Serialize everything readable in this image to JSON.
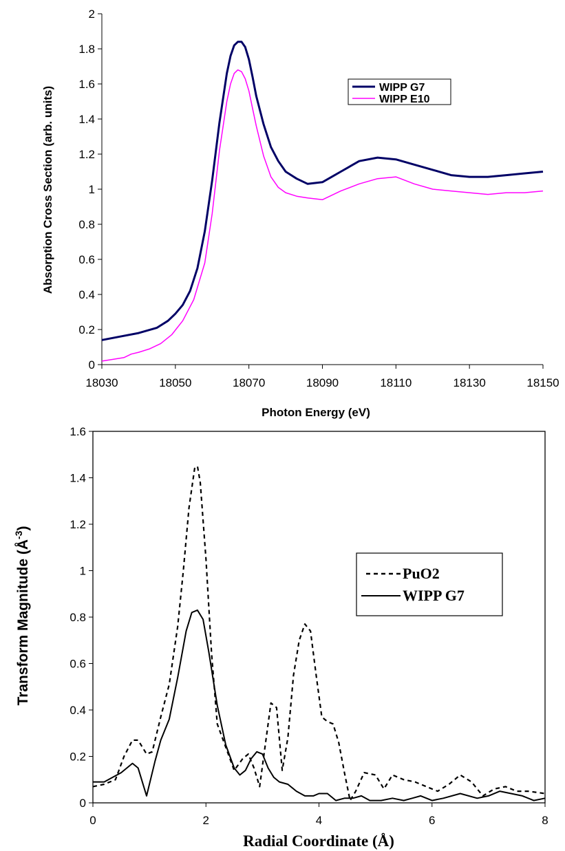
{
  "chart_data": [
    {
      "type": "line",
      "xlabel": "Photon Energy (eV)",
      "ylabel": "Absorption Cross Section (arb. units)",
      "xlim": [
        18030,
        18150
      ],
      "ylim": [
        0,
        2
      ],
      "xticks": [
        "18030",
        "18050",
        "18070",
        "18090",
        "18110",
        "18130",
        "18150"
      ],
      "yticks": [
        "0",
        "0.2",
        "0.4",
        "0.6",
        "0.8",
        "1",
        "1.2",
        "1.4",
        "1.6",
        "1.8",
        "2"
      ],
      "grid": false,
      "legend_position": "top-right",
      "series": [
        {
          "name": "WIPP G7",
          "color": "#000066",
          "style": "solid",
          "x": [
            18030,
            18035,
            18040,
            18045,
            18048,
            18050,
            18052,
            18054,
            18056,
            18058,
            18060,
            18062,
            18064,
            18065,
            18066,
            18067,
            18068,
            18069,
            18070,
            18071,
            18072,
            18074,
            18076,
            18078,
            18080,
            18083,
            18086,
            18090,
            18095,
            18100,
            18105,
            18110,
            18115,
            18120,
            18125,
            18130,
            18135,
            18140,
            18145,
            18150
          ],
          "y": [
            0.14,
            0.16,
            0.18,
            0.21,
            0.25,
            0.29,
            0.34,
            0.42,
            0.55,
            0.76,
            1.05,
            1.38,
            1.66,
            1.76,
            1.82,
            1.84,
            1.84,
            1.81,
            1.74,
            1.64,
            1.53,
            1.37,
            1.24,
            1.16,
            1.1,
            1.06,
            1.03,
            1.04,
            1.1,
            1.16,
            1.18,
            1.17,
            1.14,
            1.11,
            1.08,
            1.07,
            1.07,
            1.08,
            1.09,
            1.1
          ]
        },
        {
          "name": "WIPP E10",
          "color": "#ff00ff",
          "style": "solid",
          "x": [
            18030,
            18033,
            18036,
            18038,
            18040,
            18043,
            18046,
            18049,
            18052,
            18055,
            18058,
            18060,
            18062,
            18064,
            18065,
            18066,
            18067,
            18068,
            18069,
            18070,
            18071,
            18072,
            18074,
            18076,
            18078,
            18080,
            18083,
            18086,
            18090,
            18095,
            18100,
            18105,
            18110,
            18115,
            18120,
            18125,
            18130,
            18135,
            18140,
            18145,
            18150
          ],
          "y": [
            0.02,
            0.03,
            0.04,
            0.06,
            0.07,
            0.09,
            0.12,
            0.17,
            0.25,
            0.37,
            0.58,
            0.86,
            1.22,
            1.5,
            1.6,
            1.66,
            1.68,
            1.67,
            1.63,
            1.56,
            1.46,
            1.36,
            1.19,
            1.07,
            1.01,
            0.98,
            0.96,
            0.95,
            0.94,
            0.99,
            1.03,
            1.06,
            1.07,
            1.03,
            1.0,
            0.99,
            0.98,
            0.97,
            0.98,
            0.98,
            0.99
          ]
        }
      ]
    },
    {
      "type": "line",
      "xlabel": "Radial Coordinate (Å)",
      "ylabel_main": "Transform Magnitude (Å",
      "ylabel_sup": "-3",
      "ylabel_end": ")",
      "xlim": [
        0,
        8
      ],
      "ylim": [
        0,
        1.6
      ],
      "xticks": [
        "0",
        "2",
        "4",
        "6",
        "8"
      ],
      "yticks": [
        "0",
        "0.2",
        "0.4",
        "0.6",
        "0.8",
        "1",
        "1.2",
        "1.4",
        "1.6"
      ],
      "grid": false,
      "legend_position": "right",
      "series": [
        {
          "name": "PuO2",
          "color": "#000000",
          "style": "dashed",
          "x": [
            0,
            0.2,
            0.4,
            0.55,
            0.7,
            0.8,
            0.95,
            1.05,
            1.2,
            1.35,
            1.5,
            1.6,
            1.7,
            1.8,
            1.85,
            1.9,
            2.0,
            2.1,
            2.2,
            2.35,
            2.5,
            2.65,
            2.75,
            2.85,
            2.95,
            3.05,
            3.15,
            3.25,
            3.35,
            3.45,
            3.55,
            3.65,
            3.75,
            3.85,
            3.95,
            4.05,
            4.15,
            4.25,
            4.35,
            4.45,
            4.55,
            4.65,
            4.8,
            5.0,
            5.15,
            5.3,
            5.5,
            5.7,
            5.9,
            6.1,
            6.3,
            6.5,
            6.7,
            6.9,
            7.1,
            7.3,
            7.5,
            7.7,
            8.0
          ],
          "y": [
            0.07,
            0.08,
            0.1,
            0.2,
            0.27,
            0.27,
            0.21,
            0.22,
            0.37,
            0.51,
            0.76,
            1.0,
            1.27,
            1.44,
            1.45,
            1.38,
            1.05,
            0.64,
            0.34,
            0.24,
            0.14,
            0.19,
            0.21,
            0.15,
            0.07,
            0.25,
            0.43,
            0.41,
            0.14,
            0.28,
            0.55,
            0.7,
            0.77,
            0.74,
            0.55,
            0.37,
            0.35,
            0.34,
            0.26,
            0.13,
            0.01,
            0.05,
            0.13,
            0.12,
            0.06,
            0.12,
            0.1,
            0.09,
            0.07,
            0.05,
            0.08,
            0.12,
            0.09,
            0.03,
            0.06,
            0.07,
            0.05,
            0.05,
            0.04
          ]
        },
        {
          "name": "WIPP G7",
          "color": "#000000",
          "style": "solid",
          "x": [
            0,
            0.2,
            0.35,
            0.5,
            0.6,
            0.7,
            0.8,
            0.9,
            0.95,
            1.0,
            1.1,
            1.2,
            1.35,
            1.5,
            1.65,
            1.75,
            1.85,
            1.95,
            2.05,
            2.2,
            2.35,
            2.5,
            2.6,
            2.7,
            2.8,
            2.9,
            3.0,
            3.1,
            3.2,
            3.3,
            3.45,
            3.6,
            3.75,
            3.9,
            4.0,
            4.15,
            4.3,
            4.45,
            4.6,
            4.75,
            4.9,
            5.1,
            5.3,
            5.5,
            5.65,
            5.8,
            6.0,
            6.2,
            6.5,
            6.8,
            7.0,
            7.2,
            7.4,
            7.6,
            7.8,
            8.0
          ],
          "y": [
            0.09,
            0.09,
            0.11,
            0.13,
            0.15,
            0.17,
            0.15,
            0.07,
            0.03,
            0.08,
            0.18,
            0.27,
            0.36,
            0.54,
            0.74,
            0.82,
            0.83,
            0.79,
            0.65,
            0.42,
            0.25,
            0.15,
            0.12,
            0.14,
            0.19,
            0.22,
            0.21,
            0.15,
            0.11,
            0.09,
            0.08,
            0.05,
            0.03,
            0.03,
            0.04,
            0.04,
            0.01,
            0.02,
            0.02,
            0.03,
            0.01,
            0.01,
            0.02,
            0.01,
            0.02,
            0.03,
            0.01,
            0.02,
            0.04,
            0.02,
            0.03,
            0.05,
            0.04,
            0.03,
            0.01,
            0.02
          ]
        }
      ]
    }
  ]
}
